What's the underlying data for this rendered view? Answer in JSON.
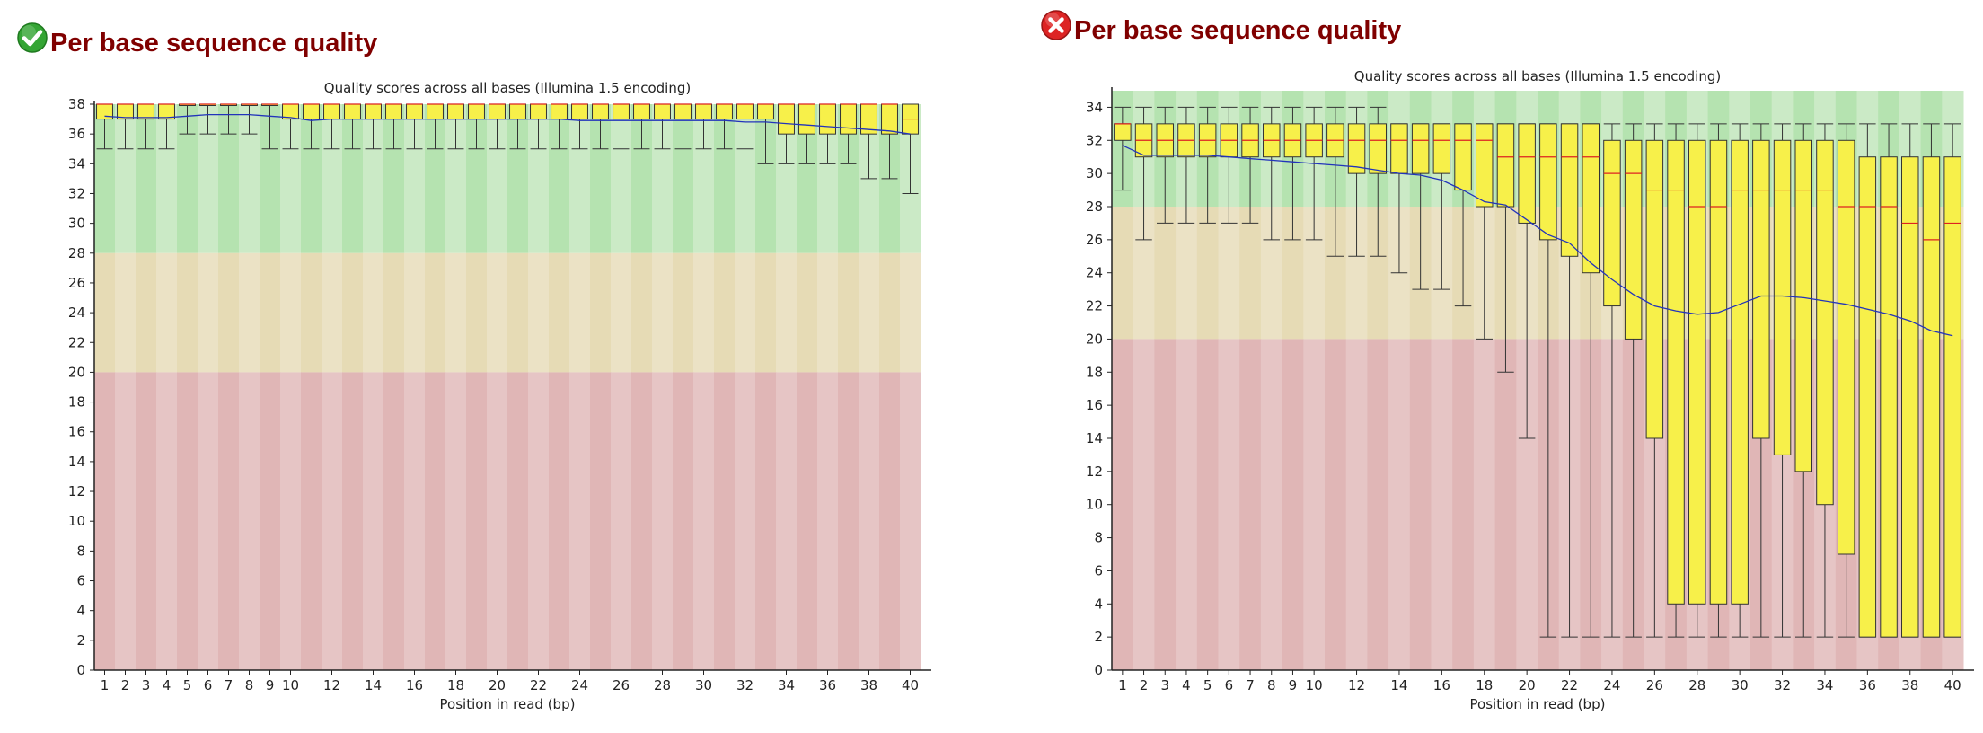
{
  "panels": [
    {
      "heading": "Per base sequence quality",
      "status_icon": "pass-check-icon",
      "status_color": "#33aa33",
      "chart_data": {
        "type": "boxplot",
        "title": "Quality scores across all bases (Illumina 1.5 encoding)",
        "xlabel": "Position in read (bp)",
        "ylabel": "",
        "ylim": [
          0,
          38
        ],
        "yticks": [
          0,
          2,
          4,
          6,
          8,
          10,
          12,
          14,
          16,
          18,
          20,
          22,
          24,
          26,
          28,
          30,
          32,
          34,
          36,
          38
        ],
        "xtick_labels": [
          "1",
          "2",
          "3",
          "4",
          "5",
          "6",
          "7",
          "8",
          "9",
          "10",
          "12",
          "14",
          "16",
          "18",
          "20",
          "22",
          "24",
          "26",
          "28",
          "30",
          "32",
          "34",
          "36",
          "38",
          "40"
        ],
        "x_positions": [
          1,
          2,
          3,
          4,
          5,
          6,
          7,
          8,
          9,
          10,
          12,
          14,
          16,
          18,
          20,
          22,
          24,
          26,
          28,
          30,
          32,
          34,
          36,
          38,
          40
        ],
        "zones": [
          {
            "name": "good",
            "from": 28,
            "to": 38,
            "colors": [
              "#b5e3b0",
              "#cbeac6"
            ]
          },
          {
            "name": "reasonable",
            "from": 20,
            "to": 28,
            "colors": [
              "#e6dbb5",
              "#ebe2c5"
            ]
          },
          {
            "name": "poor",
            "from": 0,
            "to": 20,
            "colors": [
              "#e0b6b6",
              "#e6c5c5"
            ]
          }
        ],
        "boxes": {
          "q1": [
            37,
            37,
            37,
            37,
            38,
            38,
            38,
            38,
            38,
            37,
            37,
            37,
            37,
            37,
            37,
            37,
            37,
            37,
            37,
            37,
            37,
            37,
            37,
            37,
            37,
            37,
            37,
            37,
            37,
            37,
            37,
            37,
            37,
            36,
            36,
            36,
            36,
            36,
            36,
            36
          ],
          "q3": [
            38,
            38,
            38,
            38,
            38,
            38,
            38,
            38,
            38,
            38,
            38,
            38,
            38,
            38,
            38,
            38,
            38,
            38,
            38,
            38,
            38,
            38,
            38,
            38,
            38,
            38,
            38,
            38,
            38,
            38,
            38,
            38,
            38,
            38,
            38,
            38,
            38,
            38,
            38,
            38
          ],
          "median": [
            38,
            38,
            38,
            38,
            38,
            38,
            38,
            38,
            38,
            38,
            38,
            38,
            38,
            38,
            38,
            38,
            38,
            38,
            38,
            38,
            38,
            38,
            38,
            38,
            38,
            38,
            38,
            38,
            38,
            38,
            38,
            38,
            38,
            38,
            38,
            38,
            38,
            38,
            38,
            37
          ],
          "low": [
            35,
            35,
            35,
            35,
            36,
            36,
            36,
            36,
            35,
            35,
            35,
            35,
            35,
            35,
            35,
            35,
            35,
            35,
            35,
            35,
            35,
            35,
            35,
            35,
            35,
            35,
            35,
            35,
            35,
            35,
            35,
            35,
            34,
            34,
            34,
            34,
            34,
            33,
            33,
            32
          ],
          "high": [
            38,
            38,
            38,
            38,
            38,
            38,
            38,
            38,
            38,
            38,
            38,
            38,
            38,
            38,
            38,
            38,
            38,
            38,
            38,
            38,
            38,
            38,
            38,
            38,
            38,
            38,
            38,
            38,
            38,
            38,
            38,
            38,
            38,
            38,
            38,
            38,
            38,
            38,
            38,
            38
          ],
          "mean": [
            37.2,
            37.1,
            37.1,
            37.1,
            37.2,
            37.3,
            37.3,
            37.3,
            37.2,
            37.1,
            36.9,
            37.0,
            37.0,
            37.0,
            37.0,
            37.0,
            37.0,
            37.0,
            37.0,
            37.0,
            37.0,
            37.0,
            37.0,
            36.9,
            36.9,
            36.9,
            36.9,
            36.9,
            36.9,
            36.9,
            36.9,
            36.8,
            36.8,
            36.7,
            36.6,
            36.5,
            36.4,
            36.3,
            36.2,
            36.0
          ]
        },
        "colors": {
          "box_fill": "#f7f04a",
          "box_stroke": "#333333",
          "median": "#dd2222",
          "mean": "#2233bb",
          "whisker": "#333333"
        }
      }
    },
    {
      "heading": "Per base sequence quality",
      "status_icon": "fail-x-icon",
      "status_color": "#dd2222",
      "chart_data": {
        "type": "boxplot",
        "title": "Quality scores across all bases (Illumina 1.5 encoding)",
        "xlabel": "Position in read (bp)",
        "ylabel": "",
        "ylim": [
          0,
          35
        ],
        "yticks": [
          0,
          2,
          4,
          6,
          8,
          10,
          12,
          14,
          16,
          18,
          20,
          22,
          24,
          26,
          28,
          30,
          32,
          34
        ],
        "xtick_labels": [
          "1",
          "2",
          "3",
          "4",
          "5",
          "6",
          "7",
          "8",
          "9",
          "10",
          "12",
          "14",
          "16",
          "18",
          "20",
          "22",
          "24",
          "26",
          "28",
          "30",
          "32",
          "34",
          "36",
          "38",
          "40"
        ],
        "x_positions": [
          1,
          2,
          3,
          4,
          5,
          6,
          7,
          8,
          9,
          10,
          12,
          14,
          16,
          18,
          20,
          22,
          24,
          26,
          28,
          30,
          32,
          34,
          36,
          38,
          40
        ],
        "zones": [
          {
            "name": "good",
            "from": 28,
            "to": 35,
            "colors": [
              "#b5e3b0",
              "#cbeac6"
            ]
          },
          {
            "name": "reasonable",
            "from": 20,
            "to": 28,
            "colors": [
              "#e6dbb5",
              "#ebe2c5"
            ]
          },
          {
            "name": "poor",
            "from": 0,
            "to": 20,
            "colors": [
              "#e0b6b6",
              "#e6c5c5"
            ]
          }
        ],
        "boxes": {
          "q1": [
            32,
            31,
            31,
            31,
            31,
            31,
            31,
            31,
            31,
            31,
            31,
            30,
            30,
            30,
            30,
            30,
            29,
            28,
            28,
            27,
            26,
            25,
            24,
            22,
            20,
            14,
            4,
            4,
            4,
            4,
            14,
            13,
            12,
            10,
            7,
            2,
            2,
            2,
            2,
            2
          ],
          "q3": [
            33,
            33,
            33,
            33,
            33,
            33,
            33,
            33,
            33,
            33,
            33,
            33,
            33,
            33,
            33,
            33,
            33,
            33,
            33,
            33,
            33,
            33,
            33,
            32,
            32,
            32,
            32,
            32,
            32,
            32,
            32,
            32,
            32,
            32,
            32,
            31,
            31,
            31,
            31,
            31
          ],
          "median": [
            33,
            32,
            32,
            32,
            32,
            32,
            32,
            32,
            32,
            32,
            32,
            32,
            32,
            32,
            32,
            32,
            32,
            32,
            31,
            31,
            31,
            31,
            31,
            30,
            30,
            29,
            29,
            28,
            28,
            29,
            29,
            29,
            29,
            29,
            28,
            28,
            28,
            27,
            26,
            27
          ],
          "low": [
            29,
            26,
            27,
            27,
            27,
            27,
            27,
            26,
            26,
            26,
            25,
            25,
            25,
            24,
            23,
            23,
            22,
            20,
            18,
            14,
            2,
            2,
            2,
            2,
            2,
            2,
            2,
            2,
            2,
            2,
            2,
            2,
            2,
            2,
            2,
            2,
            2,
            2,
            2,
            2
          ],
          "high": [
            34,
            34,
            34,
            34,
            34,
            34,
            34,
            34,
            34,
            34,
            34,
            34,
            34,
            33,
            33,
            33,
            33,
            33,
            33,
            33,
            33,
            33,
            33,
            33,
            33,
            33,
            33,
            33,
            33,
            33,
            33,
            33,
            33,
            33,
            33,
            33,
            33,
            33,
            33,
            33
          ],
          "mean": [
            31.7,
            31.1,
            31.1,
            31.1,
            31.1,
            31.0,
            30.9,
            30.8,
            30.7,
            30.6,
            30.5,
            30.4,
            30.2,
            30.0,
            29.9,
            29.6,
            29.0,
            28.3,
            28.1,
            27.2,
            26.3,
            25.8,
            24.6,
            23.6,
            22.7,
            22.0,
            21.7,
            21.5,
            21.6,
            22.1,
            22.6,
            22.6,
            22.5,
            22.3,
            22.1,
            21.8,
            21.5,
            21.1,
            20.5,
            20.2
          ]
        },
        "colors": {
          "box_fill": "#f7f04a",
          "box_stroke": "#333333",
          "median": "#dd2222",
          "mean": "#2233bb",
          "whisker": "#333333"
        }
      }
    }
  ]
}
